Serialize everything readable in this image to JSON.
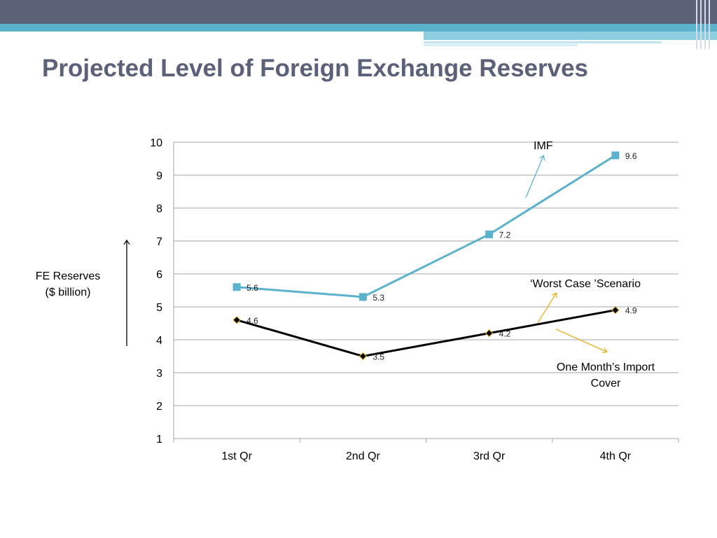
{
  "title": "Projected Level of Foreign Exchange Reserves",
  "colors": {
    "header": "#5a6178",
    "accent": "#5bb2cc",
    "imf_series": "#5bb2cc",
    "worst_case_series": "#000000",
    "annotation_arrow_gold": "#e6b020"
  },
  "y_axis_label": [
    "FE Reserves",
    "($ billion)"
  ],
  "annotations": {
    "imf": "IMF",
    "worst_case": "‘Worst Case ’Scenario",
    "one_month": "One Month’s Import Cover"
  },
  "chart_data": {
    "type": "line",
    "categories": [
      "1st Qr",
      "2nd Qr",
      "3rd Qr",
      "4th Qr"
    ],
    "series": [
      {
        "name": "IMF",
        "values": [
          5.6,
          5.3,
          7.2,
          9.6
        ]
      },
      {
        "name": "‘Worst Case ’Scenario",
        "values": [
          4.6,
          3.5,
          4.2,
          4.9
        ]
      }
    ],
    "data_labels": [
      [
        "5.6",
        "5.3",
        "7.2",
        "9.6"
      ],
      [
        "4.6",
        "3.5",
        "4.2",
        "4.9"
      ]
    ],
    "ylim": [
      1,
      10
    ],
    "y_ticks": [
      1,
      2,
      3,
      4,
      5,
      6,
      7,
      8,
      9,
      10
    ],
    "grid": true,
    "legend": "none",
    "title": "",
    "xlabel": "",
    "ylabel": "FE Reserves ($ billion)"
  }
}
